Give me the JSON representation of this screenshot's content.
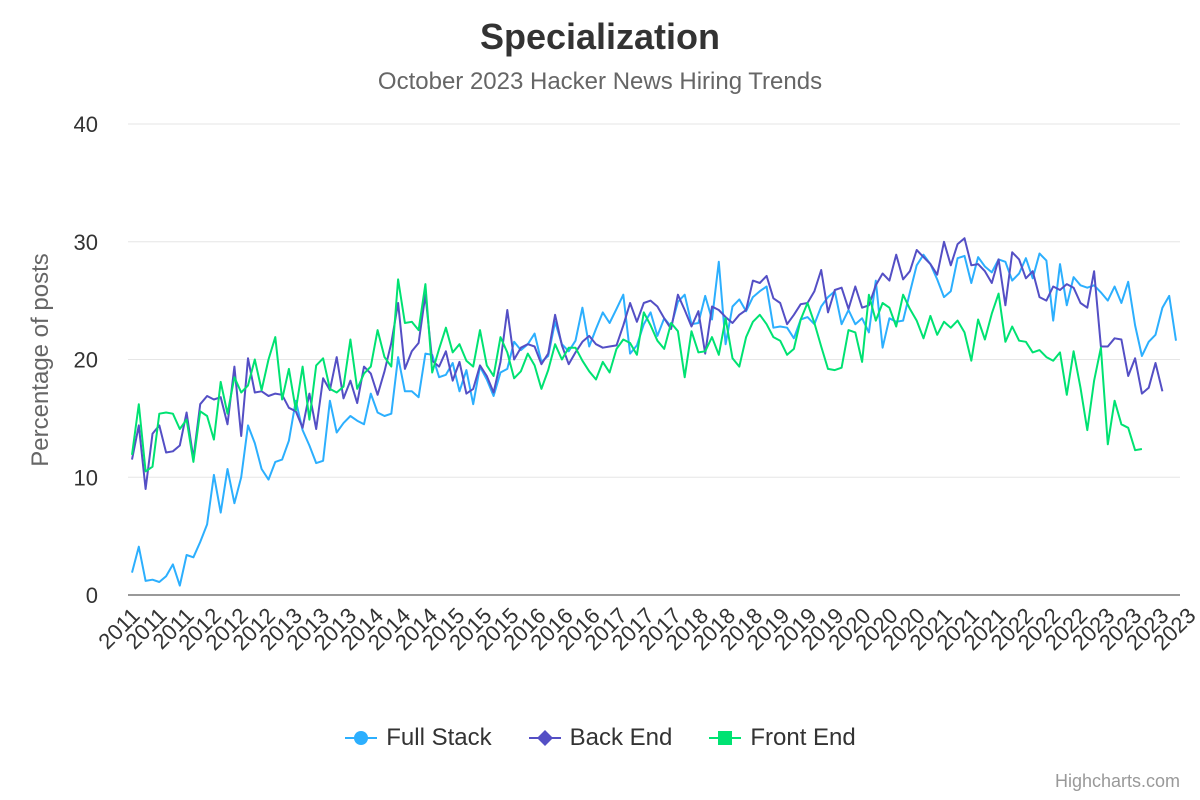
{
  "chart_data": {
    "type": "line",
    "title": "Specialization",
    "subtitle": "October 2023 Hacker News Hiring Trends",
    "ylabel": "Percentage of posts",
    "xlabel": "",
    "ylim": [
      0,
      40
    ],
    "yticks": [
      0,
      10,
      20,
      30,
      40
    ],
    "x_start": 2011.29,
    "x_step": 0.0833,
    "grid": true,
    "legend_position": "bottom-center",
    "x_tick_labels": [
      "2011",
      "2011",
      "2011",
      "2012",
      "2012",
      "2012",
      "2013",
      "2013",
      "2013",
      "2014",
      "2014",
      "2014",
      "2015",
      "2015",
      "2015",
      "2016",
      "2016",
      "2016",
      "2017",
      "2017",
      "2017",
      "2018",
      "2018",
      "2018",
      "2019",
      "2019",
      "2019",
      "2020",
      "2020",
      "2020",
      "2021",
      "2021",
      "2021",
      "2022",
      "2022",
      "2022",
      "2023",
      "2023",
      "2023",
      "2023"
    ],
    "series": [
      {
        "name": "Full Stack",
        "color": "#2caffe",
        "marker": "circle",
        "values": [
          1.9,
          4.1,
          1.2,
          1.3,
          1.1,
          1.6,
          2.6,
          0.8,
          3.4,
          3.2,
          4.5,
          6.0,
          10.2,
          7.0,
          10.7,
          7.8,
          10.0,
          14.4,
          12.9,
          10.7,
          9.8,
          11.3,
          11.5,
          13.1,
          16.5,
          14.0,
          12.7,
          11.2,
          11.4,
          16.5,
          13.8,
          14.6,
          15.2,
          14.8,
          14.5,
          17.1,
          15.5,
          15.2,
          15.4,
          20.2,
          17.3,
          17.3,
          16.8,
          20.5,
          20.4,
          18.5,
          18.7,
          19.7,
          17.3,
          19.1,
          16.2,
          19.4,
          18.3,
          16.9,
          18.9,
          19.2,
          21.5,
          20.8,
          21.3,
          22.2,
          19.8,
          20.3,
          23.2,
          21.3,
          20.7,
          21.6,
          24.4,
          21.1,
          22.6,
          24.0,
          23.1,
          24.3,
          25.5,
          20.5,
          21.2,
          23.0,
          24.0,
          22.0,
          23.5,
          22.8,
          24.9,
          25.5,
          23.0,
          23.1,
          25.4,
          23.4,
          28.3,
          21.3,
          24.5,
          25.1,
          24.1,
          25.3,
          25.8,
          26.2,
          22.7,
          22.8,
          22.7,
          21.8,
          23.4,
          23.6,
          23.0,
          24.5,
          25.3,
          25.8,
          23.0,
          24.2,
          23.0,
          23.5,
          22.3,
          26.7,
          21.0,
          23.5,
          23.2,
          23.3,
          25.7,
          28.0,
          28.9,
          28.1,
          26.8,
          25.3,
          25.8,
          28.6,
          28.8,
          26.5,
          28.7,
          27.9,
          27.4,
          28.5,
          28.3,
          26.7,
          27.3,
          28.6,
          26.9,
          29.0,
          28.4,
          23.3,
          28.1,
          24.6,
          27.0,
          26.3,
          26.1,
          26.3,
          25.7,
          25.0,
          26.2,
          24.8,
          26.6,
          22.9,
          20.3,
          21.5,
          22.1,
          24.4,
          25.4,
          21.6
        ]
      },
      {
        "name": "Back End",
        "color": "#544fc5",
        "marker": "diamond",
        "values": [
          11.5,
          14.4,
          9.0,
          13.7,
          14.4,
          12.1,
          12.2,
          12.7,
          15.5,
          11.6,
          16.2,
          16.9,
          16.6,
          16.8,
          14.5,
          19.4,
          13.5,
          20.1,
          17.2,
          17.3,
          16.9,
          17.1,
          17.0,
          15.9,
          15.6,
          14.2,
          17.1,
          14.1,
          18.4,
          17.4,
          20.2,
          16.7,
          18.2,
          16.3,
          19.4,
          18.8,
          17.0,
          19.0,
          21.4,
          24.8,
          19.2,
          20.7,
          21.4,
          25.5,
          19.9,
          19.4,
          20.7,
          18.2,
          19.8,
          17.1,
          17.5,
          19.5,
          18.6,
          17.2,
          19.8,
          24.2,
          20.0,
          21.0,
          21.3,
          21.1,
          19.6,
          20.5,
          23.8,
          21.2,
          19.6,
          20.6,
          21.5,
          22.0,
          21.3,
          21.0,
          21.1,
          21.2,
          22.9,
          24.8,
          23.2,
          24.8,
          25.0,
          24.5,
          23.5,
          22.6,
          25.5,
          24.2,
          22.8,
          24.1,
          20.5,
          24.5,
          24.2,
          23.6,
          23.1,
          23.8,
          24.2,
          26.7,
          26.5,
          27.1,
          25.2,
          24.8,
          23.0,
          23.8,
          24.7,
          24.8,
          25.8,
          27.6,
          24.0,
          25.9,
          26.1,
          24.3,
          26.2,
          24.4,
          24.6,
          26.3,
          27.3,
          26.7,
          28.9,
          26.8,
          27.5,
          29.3,
          28.7,
          28.1,
          27.2,
          30.0,
          28.0,
          29.8,
          30.3,
          28.0,
          28.1,
          27.5,
          26.5,
          28.5,
          24.6,
          29.1,
          28.5,
          26.9,
          27.5,
          25.3,
          25.0,
          26.2,
          25.9,
          26.4,
          26.1,
          24.8,
          24.4,
          27.5,
          21.1,
          21.1,
          21.8,
          21.7,
          18.6,
          20.1,
          17.1,
          17.6,
          19.7,
          17.3
        ]
      },
      {
        "name": "Front End",
        "color": "#00e272",
        "marker": "square",
        "values": [
          11.9,
          16.2,
          10.5,
          10.9,
          15.4,
          15.5,
          15.4,
          14.1,
          14.9,
          11.3,
          15.6,
          15.2,
          13.2,
          18.1,
          15.4,
          18.5,
          17.2,
          17.8,
          20.0,
          17.4,
          20.0,
          21.9,
          16.6,
          19.2,
          15.7,
          19.4,
          14.9,
          19.5,
          20.1,
          17.5,
          17.2,
          17.7,
          21.7,
          17.5,
          18.8,
          19.4,
          22.5,
          20.2,
          19.4,
          26.8,
          23.1,
          23.2,
          22.5,
          26.4,
          18.9,
          20.9,
          22.7,
          20.6,
          21.3,
          19.9,
          19.4,
          22.5,
          19.5,
          18.6,
          21.9,
          20.6,
          18.4,
          19.0,
          20.5,
          19.5,
          17.5,
          19.1,
          21.3,
          20.0,
          21.0,
          21.0,
          19.9,
          19.0,
          18.3,
          19.8,
          18.9,
          20.9,
          21.7,
          21.4,
          20.4,
          24.0,
          22.9,
          21.6,
          20.9,
          23.1,
          22.4,
          18.5,
          22.4,
          20.6,
          20.7,
          21.9,
          20.4,
          23.5,
          20.1,
          19.4,
          21.9,
          23.2,
          23.8,
          23.0,
          21.9,
          21.6,
          20.4,
          20.9,
          23.4,
          24.8,
          23.1,
          21.1,
          19.2,
          19.1,
          19.3,
          22.5,
          22.3,
          19.8,
          25.5,
          23.3,
          24.8,
          24.4,
          22.8,
          25.5,
          24.3,
          23.3,
          21.8,
          23.7,
          22.1,
          23.2,
          22.7,
          23.3,
          22.3,
          19.9,
          23.4,
          21.7,
          23.9,
          25.6,
          21.5,
          22.8,
          21.6,
          21.5,
          20.6,
          20.8,
          20.2,
          19.9,
          20.6,
          17.0,
          20.7,
          17.6,
          14.0,
          18.2,
          21.0,
          12.8,
          16.5,
          14.5,
          14.2,
          12.3,
          12.4
        ]
      }
    ]
  },
  "credits": "Highcharts.com"
}
